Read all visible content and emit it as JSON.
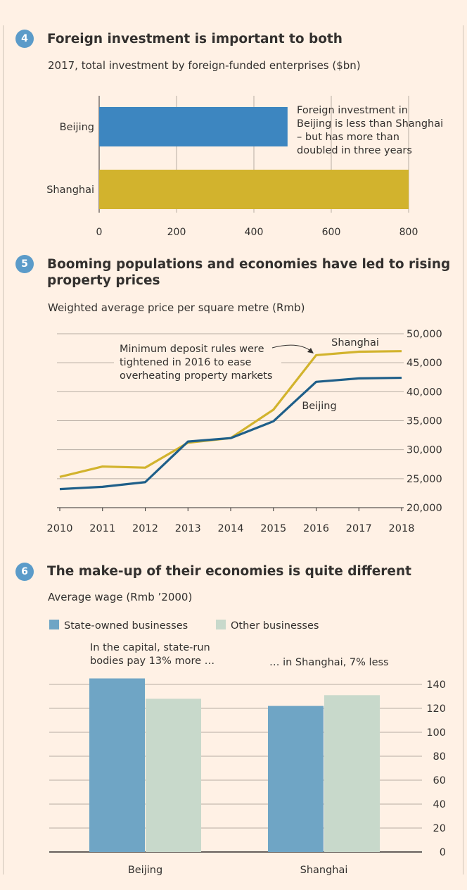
{
  "sections": [
    {
      "number": "4",
      "title": "Foreign investment is important to both",
      "subtitle": "2017, total investment by foreign-funded enterprises ($bn)"
    },
    {
      "number": "5",
      "title": "Booming populations and economies have led to rising property prices",
      "subtitle": "Weighted average price per square metre (Rmb)"
    },
    {
      "number": "6",
      "title": "The make-up of their economies is quite different",
      "subtitle": "Average wage (Rmb ’2000)"
    }
  ],
  "chart_data": [
    {
      "type": "bar",
      "orientation": "horizontal",
      "categories": [
        "Beijing",
        "Shanghai"
      ],
      "values": [
        487,
        800
      ],
      "colors": [
        "#3d86c0",
        "#d2b32d"
      ],
      "xlim": [
        0,
        800
      ],
      "x_ticks": [
        "0",
        "200",
        "400",
        "600",
        "800"
      ],
      "grid": true,
      "annotation": [
        "Foreign investment in",
        "Beijing is less than Shanghai",
        "– but has more than",
        "doubled in three years"
      ]
    },
    {
      "type": "line",
      "x": [
        "2010",
        "2011",
        "2012",
        "2013",
        "2014",
        "2015",
        "2016",
        "2017",
        "2018"
      ],
      "series": [
        {
          "name": "Shanghai",
          "color": "#d2b32d",
          "values": [
            25300,
            27100,
            26900,
            31200,
            32000,
            36900,
            46300,
            46900,
            47000
          ]
        },
        {
          "name": "Beijing",
          "color": "#1f5f89",
          "values": [
            23200,
            23600,
            24400,
            31400,
            32000,
            34900,
            41700,
            42300,
            42400
          ]
        }
      ],
      "ylim": [
        20000,
        50000
      ],
      "y_ticks": [
        "50,000",
        "45,000",
        "40,000",
        "35,000",
        "30,000",
        "25,000",
        "20,000"
      ],
      "grid": true,
      "annotation": [
        "Minimum deposit rules were",
        "tightened in 2016 to ease",
        "overheating property markets"
      ]
    },
    {
      "type": "bar",
      "categories": [
        "Beijing",
        "Shanghai"
      ],
      "series": [
        {
          "name": "State-owned businesses",
          "color": "#6fa5c5",
          "values": [
            145,
            122
          ]
        },
        {
          "name": "Other businesses",
          "color": "#c8d9cb",
          "values": [
            128,
            131
          ]
        }
      ],
      "ylim": [
        0,
        140
      ],
      "y_ticks": [
        "140",
        "120",
        "100",
        "80",
        "60",
        "40",
        "20",
        "0"
      ],
      "grid": true,
      "legend": "top-left",
      "annotations": [
        [
          "In the capital, state-run",
          "bodies pay 13% more …"
        ],
        [
          "… in Shanghai, 7% less"
        ]
      ]
    }
  ]
}
